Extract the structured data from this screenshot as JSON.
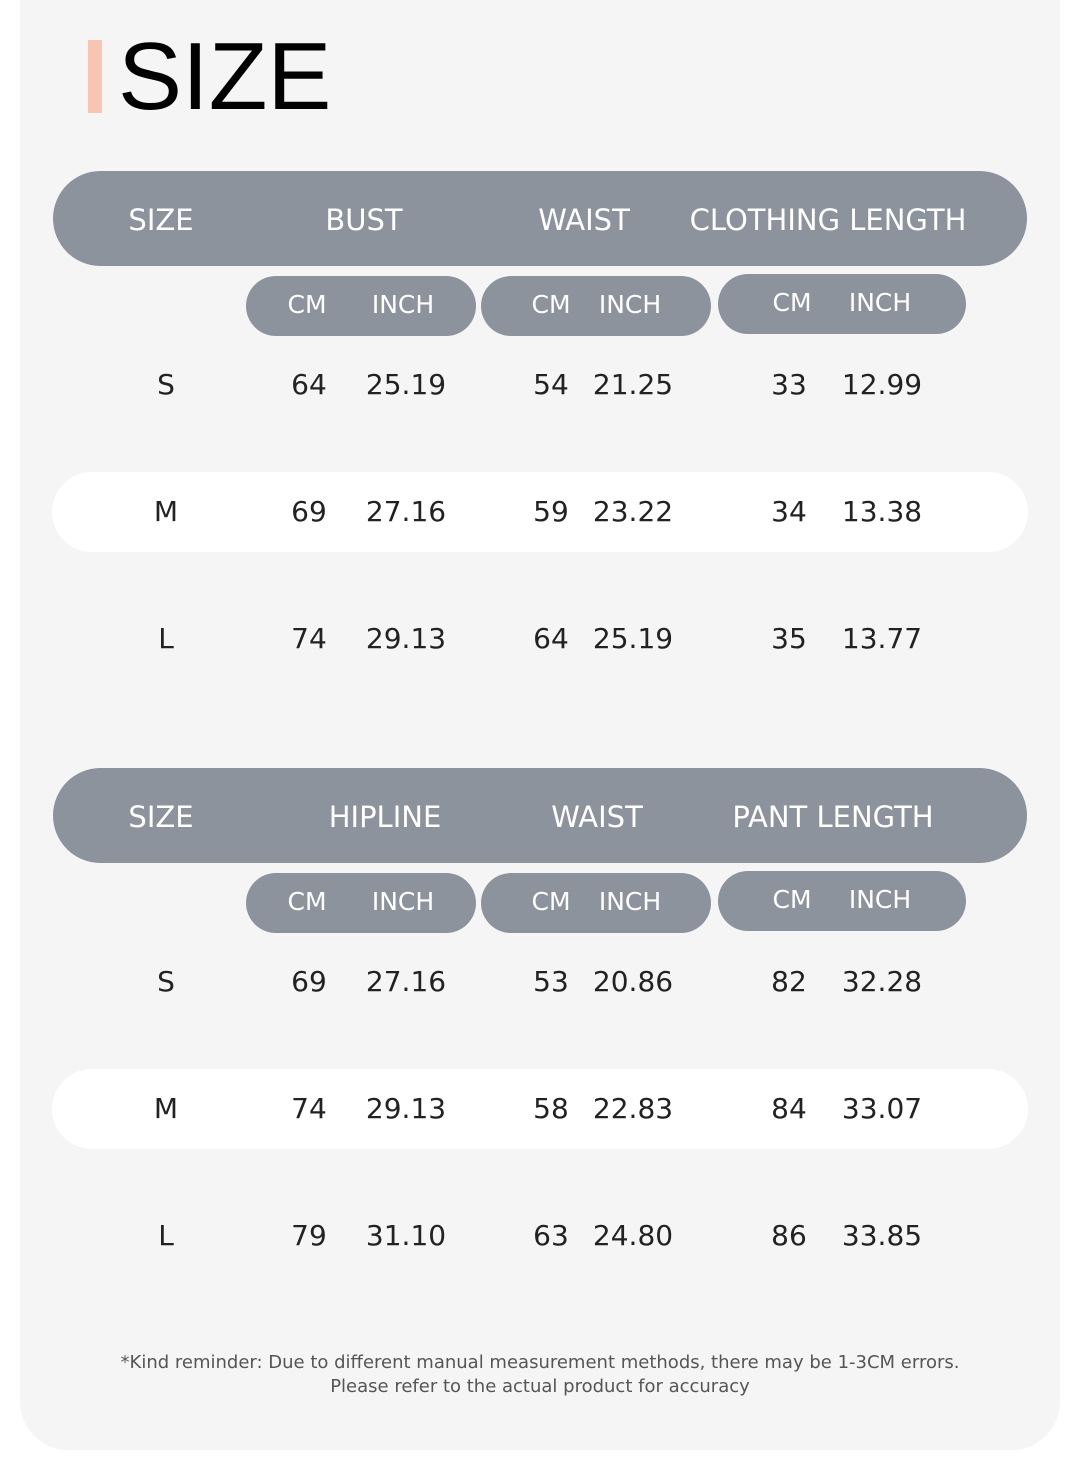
{
  "title": "SIZE",
  "colors": {
    "accent": "#f8c4b4",
    "header": "#8c939d",
    "card": "#f5f5f5",
    "band": "#ffffff"
  },
  "tables": [
    {
      "headers": [
        "SIZE",
        "BUST",
        "WAIST",
        "CLOTHING LENGTH"
      ],
      "units": [
        [
          "CM",
          "INCH"
        ],
        [
          "CM",
          "INCH"
        ],
        [
          "CM",
          "INCH"
        ]
      ],
      "rows": [
        [
          "S",
          "64",
          "25.19",
          "54",
          "21.25",
          "33",
          "12.99"
        ],
        [
          "M",
          "69",
          "27.16",
          "59",
          "23.22",
          "34",
          "13.38"
        ],
        [
          "L",
          "74",
          "29.13",
          "64",
          "25.19",
          "35",
          "13.77"
        ]
      ]
    },
    {
      "headers": [
        "SIZE",
        "HIPLINE",
        "WAIST",
        "PANT LENGTH"
      ],
      "units": [
        [
          "CM",
          "INCH"
        ],
        [
          "CM",
          "INCH"
        ],
        [
          "CM",
          "INCH"
        ]
      ],
      "rows": [
        [
          "S",
          "69",
          "27.16",
          "53",
          "20.86",
          "82",
          "32.28"
        ],
        [
          "M",
          "74",
          "29.13",
          "58",
          "22.83",
          "84",
          "33.07"
        ],
        [
          "L",
          "79",
          "31.10",
          "63",
          "24.80",
          "86",
          "33.85"
        ]
      ]
    }
  ],
  "note": {
    "line1": "*Kind reminder: Due to different manual measurement methods, there may be 1-3CM errors.",
    "line2": "Please refer to the actual product for accuracy"
  }
}
